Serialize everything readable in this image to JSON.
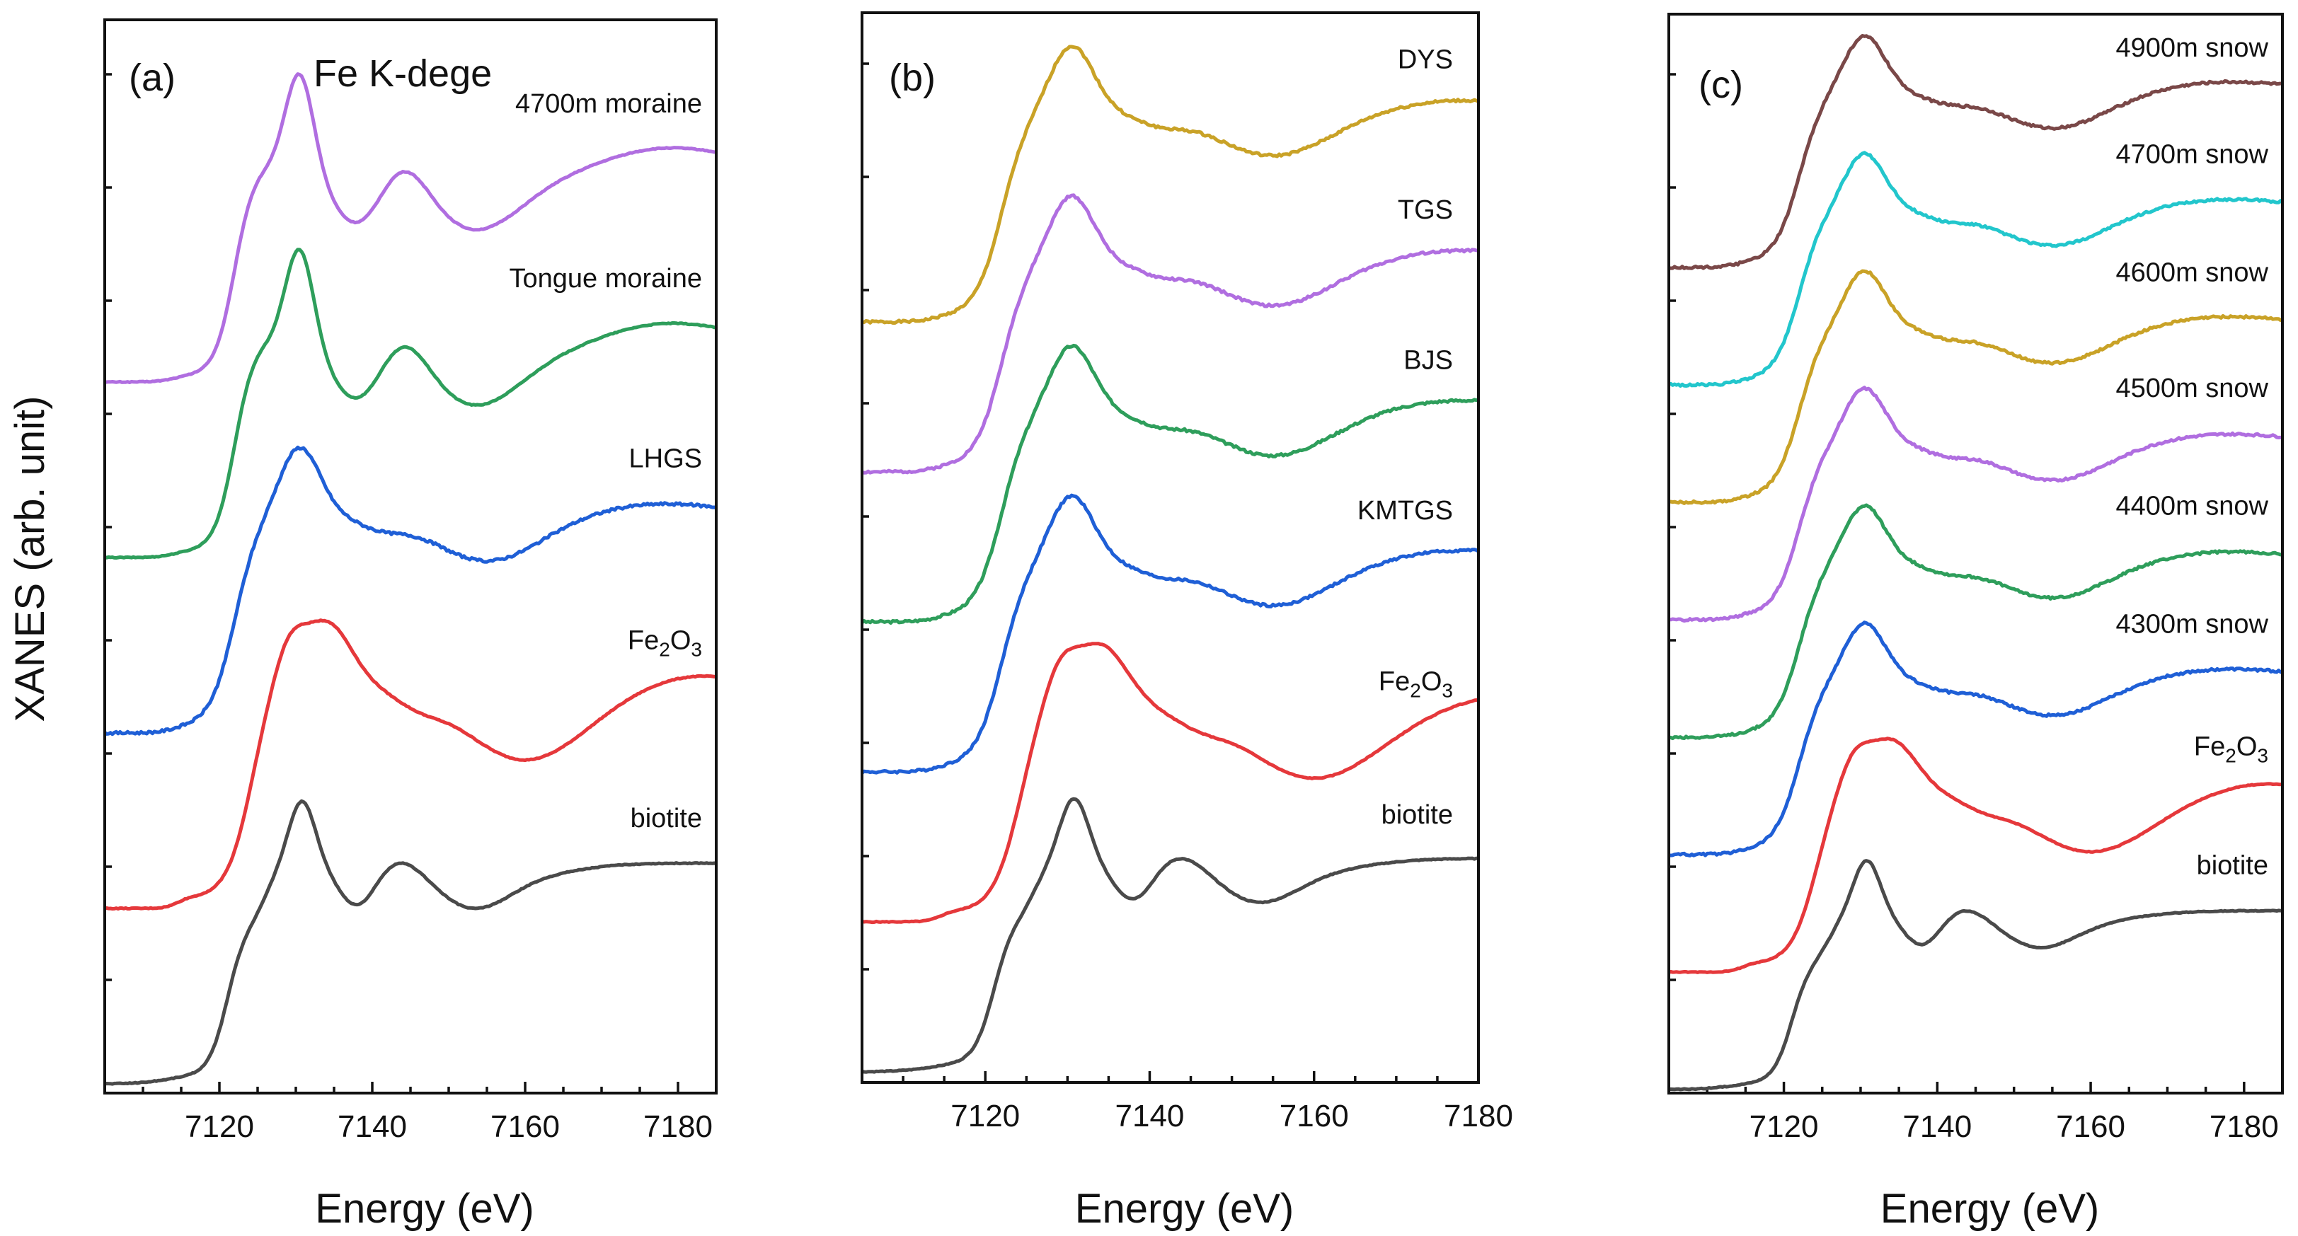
{
  "figure": {
    "ylabel": "XANES (arb. unit)",
    "xlabel": "Energy (eV)"
  },
  "chart_data": [
    {
      "type": "line",
      "panel": "(a)",
      "title": "Fe K-dege",
      "xlabel": "Energy (eV)",
      "ylabel": "XANES (arb. unit)",
      "xlim": [
        7105,
        7185
      ],
      "xticks": [
        7120,
        7140,
        7160,
        7180
      ],
      "series": [
        {
          "name": "4700m moraine",
          "color": "#b06ee0",
          "profile": "moraine",
          "offset": 4,
          "amplitude": 1.0
        },
        {
          "name": "Tongue moraine",
          "color": "#2e9e5b",
          "profile": "moraine",
          "offset": 3,
          "amplitude": 1.0
        },
        {
          "name": "LHGS",
          "color": "#1f5fd6",
          "profile": "snow",
          "offset": 2,
          "amplitude": 1.0
        },
        {
          "name": "Fe2O3",
          "color": "#e5383b",
          "profile": "fe2o3",
          "offset": 1,
          "amplitude": 1.0
        },
        {
          "name": "biotite",
          "color": "#4a4a4a",
          "profile": "biotite",
          "offset": 0,
          "amplitude": 1.0
        }
      ]
    },
    {
      "type": "line",
      "panel": "(b)",
      "title": "",
      "xlabel": "Energy (eV)",
      "ylabel": "",
      "xlim": [
        7105,
        7180
      ],
      "xticks": [
        7120,
        7140,
        7160,
        7180
      ],
      "series": [
        {
          "name": "DYS",
          "color": "#c9a227",
          "profile": "snow",
          "offset": 5,
          "amplitude": 1.0
        },
        {
          "name": "TGS",
          "color": "#b06ee0",
          "profile": "snow",
          "offset": 4,
          "amplitude": 1.0
        },
        {
          "name": "BJS",
          "color": "#2e9e5b",
          "profile": "snow",
          "offset": 3,
          "amplitude": 1.0
        },
        {
          "name": "KMTGS",
          "color": "#1f5fd6",
          "profile": "snow",
          "offset": 2,
          "amplitude": 1.0
        },
        {
          "name": "Fe2O3",
          "color": "#e5383b",
          "profile": "fe2o3",
          "offset": 1,
          "amplitude": 1.0
        },
        {
          "name": "biotite",
          "color": "#4a4a4a",
          "profile": "biotite",
          "offset": 0,
          "amplitude": 1.0
        }
      ]
    },
    {
      "type": "line",
      "panel": "(c)",
      "title": "",
      "xlabel": "Energy (eV)",
      "ylabel": "",
      "xlim": [
        7105,
        7185
      ],
      "xticks": [
        7120,
        7140,
        7160,
        7180
      ],
      "series": [
        {
          "name": "4900m snow",
          "color": "#7a4848",
          "profile": "snow",
          "offset": 7,
          "amplitude": 0.9
        },
        {
          "name": "4700m snow",
          "color": "#22c6cc",
          "profile": "snow",
          "offset": 6,
          "amplitude": 0.9
        },
        {
          "name": "4600m snow",
          "color": "#c9a227",
          "profile": "snow",
          "offset": 5,
          "amplitude": 0.9
        },
        {
          "name": "4500m snow",
          "color": "#b06ee0",
          "profile": "snow",
          "offset": 4,
          "amplitude": 0.9
        },
        {
          "name": "4400m snow",
          "color": "#2e9e5b",
          "profile": "snow",
          "offset": 3,
          "amplitude": 0.9
        },
        {
          "name": "4300m snow",
          "color": "#1f5fd6",
          "profile": "snow",
          "offset": 2,
          "amplitude": 0.9
        },
        {
          "name": "Fe2O3",
          "color": "#e5383b",
          "profile": "fe2o3",
          "offset": 1,
          "amplitude": 0.9
        },
        {
          "name": "biotite",
          "color": "#4a4a4a",
          "profile": "biotite",
          "offset": 0,
          "amplitude": 0.9
        }
      ]
    }
  ]
}
